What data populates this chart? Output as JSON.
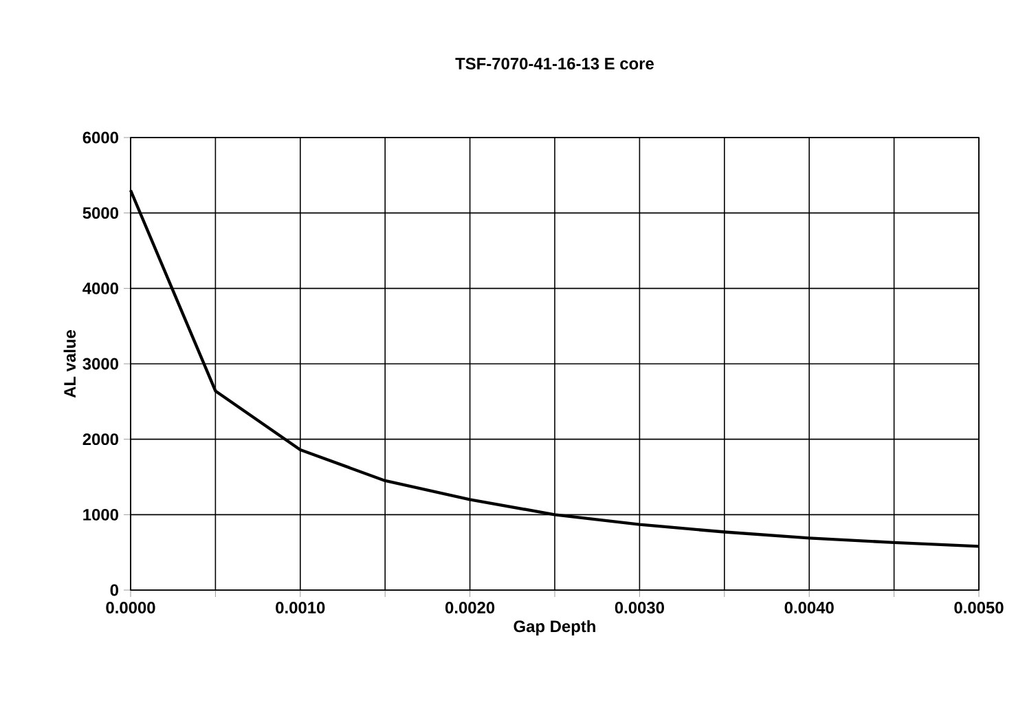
{
  "chart_data": {
    "type": "line",
    "title": "TSF-7070-41-16-13 E core",
    "xlabel": "Gap Depth",
    "ylabel": "AL value",
    "x": [
      0,
      0.0005,
      0.001,
      0.0015,
      0.002,
      0.0025,
      0.003,
      0.0035,
      0.004,
      0.0045,
      0.005
    ],
    "series": [
      {
        "color": "#000000",
        "values": [
          5300,
          2640,
          1860,
          1450,
          1200,
          1000,
          870,
          770,
          690,
          630,
          580
        ]
      }
    ],
    "xlim": [
      0,
      0.005
    ],
    "xticks": [
      {
        "value": 0,
        "label": "0.0000"
      },
      {
        "value": 0.0005,
        "label": null
      },
      {
        "value": 0.001,
        "label": "0.0010"
      },
      {
        "value": 0.0015,
        "label": null
      },
      {
        "value": 0.002,
        "label": "0.0020"
      },
      {
        "value": 0.0025,
        "label": null
      },
      {
        "value": 0.003,
        "label": "0.0030"
      },
      {
        "value": 0.0035,
        "label": null
      },
      {
        "value": 0.004,
        "label": "0.0040"
      },
      {
        "value": 0.0045,
        "label": null
      },
      {
        "value": 0.005,
        "label": "0.0050"
      }
    ],
    "ylim": [
      0,
      6000
    ],
    "yticks": [
      0,
      1000,
      2000,
      3000,
      4000,
      5000,
      6000
    ],
    "grid": true,
    "marker": "none",
    "line_style": "solid"
  }
}
